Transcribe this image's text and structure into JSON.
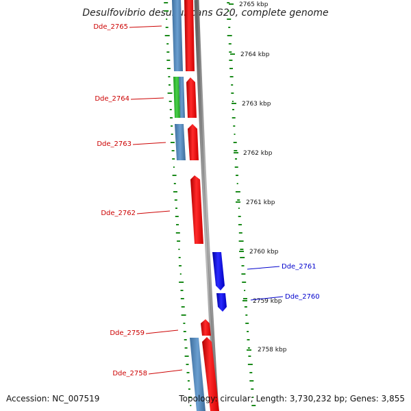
{
  "title": "Desulfovibrio desulfuricans G20, complete genome",
  "footer": {
    "accession": "Accession: NC_007519",
    "topology": "Topology: circular; Length: 3,730,232 bp; Genes: 3,855"
  },
  "scale_labels": [
    "2765 kbp",
    "2764 kbp",
    "2763 kbp",
    "2762 kbp",
    "2761 kbp",
    "2760 kbp",
    "2759 kbp",
    "2758 kbp"
  ],
  "gene_labels": [
    {
      "id": "Dde_2765",
      "strand": "forward",
      "color": "#cc0000"
    },
    {
      "id": "Dde_2764",
      "strand": "forward",
      "color": "#cc0000"
    },
    {
      "id": "Dde_2763",
      "strand": "forward",
      "color": "#cc0000"
    },
    {
      "id": "Dde_2762",
      "strand": "forward",
      "color": "#cc0000"
    },
    {
      "id": "Dde_2761",
      "strand": "reverse",
      "color": "#0000cc"
    },
    {
      "id": "Dde_2760",
      "strand": "reverse",
      "color": "#0000cc"
    },
    {
      "id": "Dde_2759",
      "strand": "forward",
      "color": "#cc0000"
    },
    {
      "id": "Dde_2758",
      "strand": "forward",
      "color": "#cc0000"
    }
  ],
  "colors": {
    "forward_cds": "#ff0000",
    "reverse_cds": "#0000ee",
    "gene_feature": "#4f86c6",
    "rna_feature": "#2db82d",
    "backbone": "#888888",
    "gc_ticks": "#1a8a1a"
  }
}
